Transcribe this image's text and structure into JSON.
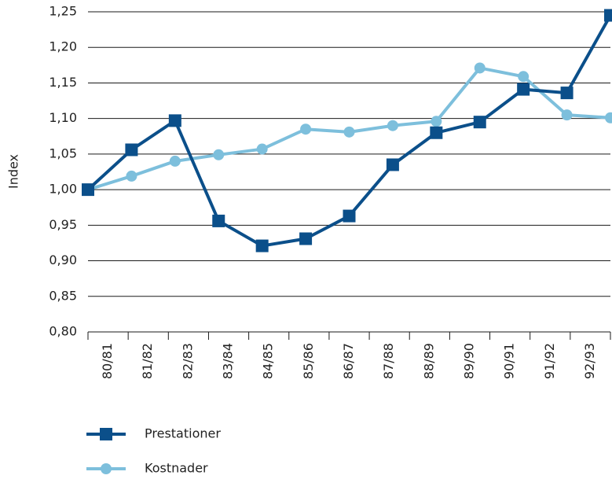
{
  "chart_data": {
    "type": "line",
    "y_label": "Index",
    "categories": [
      "80/81",
      "81/82",
      "82/83",
      "83/84",
      "84/85",
      "85/86",
      "86/87",
      "87/88",
      "88/89",
      "89/90",
      "90/91",
      "91/92",
      "92/93"
    ],
    "series": [
      {
        "name": "Prestationer",
        "color": "#0b4f8a",
        "marker": "square",
        "values": [
          1.0,
          1.056,
          1.097,
          0.956,
          0.921,
          0.931,
          0.963,
          1.035,
          1.08,
          1.095,
          1.141,
          1.136,
          1.245
        ]
      },
      {
        "name": "Kostnader",
        "color": "#7dbfdc",
        "marker": "circle",
        "values": [
          1.0,
          1.019,
          1.04,
          1.049,
          1.057,
          1.085,
          1.081,
          1.09,
          1.096,
          1.171,
          1.159,
          1.105,
          1.101
        ]
      }
    ],
    "ylim": [
      0.8,
      1.25
    ],
    "yticks": [
      {
        "value": 0.8,
        "label": "0,80"
      },
      {
        "value": 0.85,
        "label": "0,85"
      },
      {
        "value": 0.9,
        "label": "0,90"
      },
      {
        "value": 0.95,
        "label": "0,95"
      },
      {
        "value": 1.0,
        "label": "1,00"
      },
      {
        "value": 1.05,
        "label": "1,05"
      },
      {
        "value": 1.1,
        "label": "1,10"
      },
      {
        "value": 1.15,
        "label": "1,15"
      },
      {
        "value": 1.2,
        "label": "1,20"
      },
      {
        "value": 1.25,
        "label": "1,25"
      }
    ],
    "grid": true
  }
}
